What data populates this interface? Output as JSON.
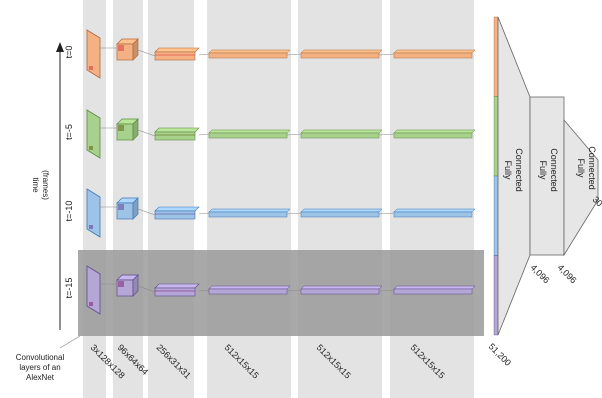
{
  "time_axis": {
    "label": "time\n(frames)",
    "arrow": "up-arrow"
  },
  "frames": [
    {
      "label": "t=0",
      "color": "#f4b183",
      "edge": "#b06a3a",
      "accent": "#e0504a"
    },
    {
      "label": "t=-5",
      "color": "#a9d18e",
      "edge": "#5b8a3c",
      "accent": "#6a7a2a"
    },
    {
      "label": "t=-10",
      "color": "#9dc3e6",
      "edge": "#3f78b5",
      "accent": "#6b5aa8"
    },
    {
      "label": "t=-15",
      "color": "#b4a7d6",
      "edge": "#5f4a8b",
      "accent": "#8a3a8a"
    }
  ],
  "layers": [
    {
      "dims": "3x128x128"
    },
    {
      "dims": "96x64x64"
    },
    {
      "dims": "256x31x31"
    },
    {
      "dims": "512x15x15"
    },
    {
      "dims": "512x15x15"
    },
    {
      "dims": "512x15x15"
    }
  ],
  "conv_caption": "Convolutional\nlayers of an\nAlexNet",
  "fc_layers": [
    {
      "label": "Fully\nConnected",
      "size": "51,200"
    },
    {
      "label": "Fully\nConnected",
      "size": "4,096"
    },
    {
      "label": "Fully\nConnected",
      "size": "4,096"
    }
  ],
  "output": {
    "size": "30"
  },
  "colors": {
    "column_band": "#e3e3e3",
    "highlight_band": "#9a9a9a",
    "fc_fill": "#e6e6e6",
    "fc_edge": "#666666"
  }
}
